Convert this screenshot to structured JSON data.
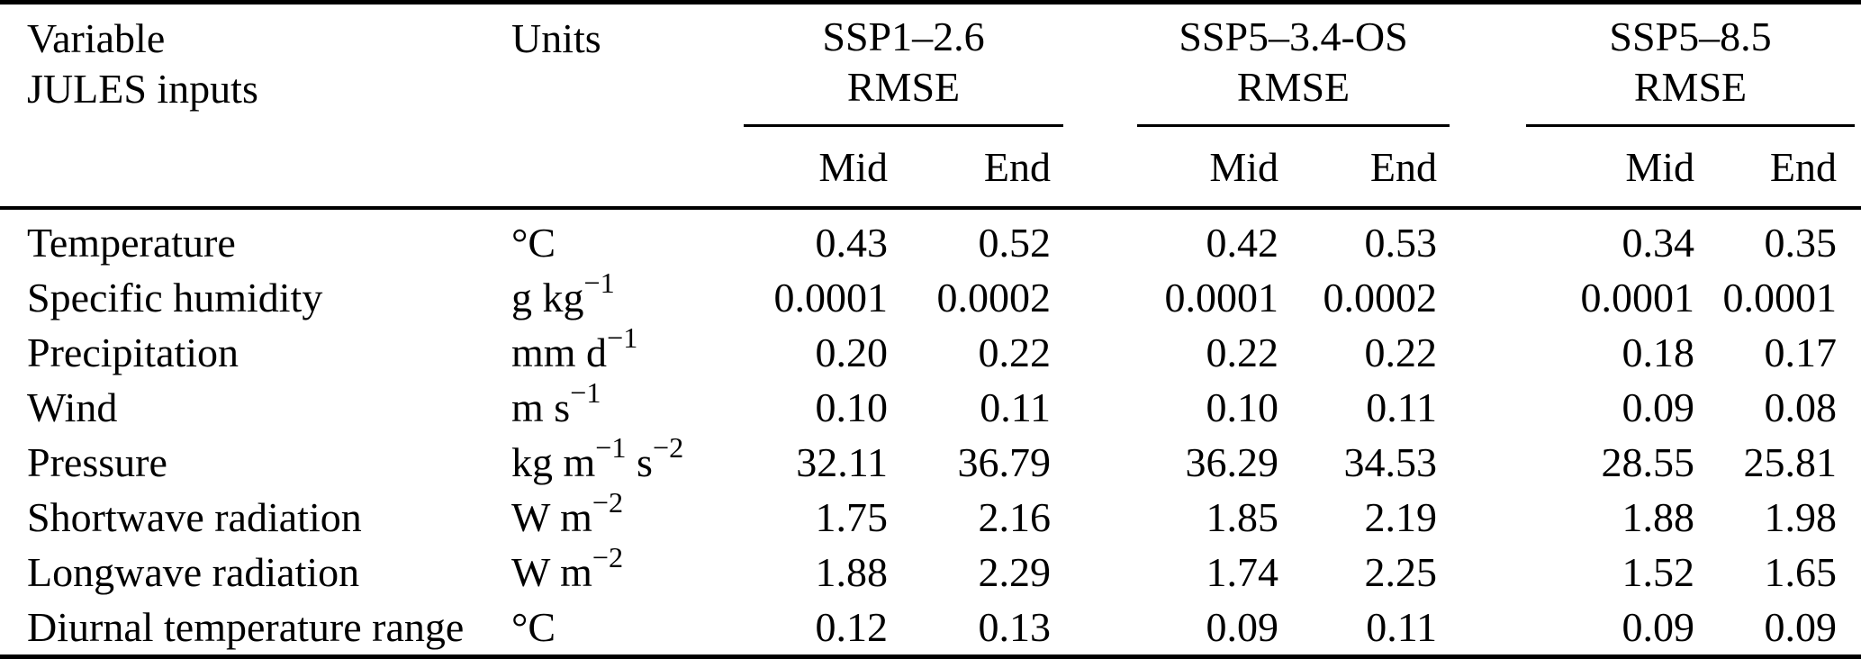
{
  "table": {
    "header": {
      "col1_line1": "Variable",
      "col1_line2": "JULES inputs",
      "col2": "Units",
      "groups": [
        {
          "scenario": "SSP1–2.6",
          "metric": "RMSE"
        },
        {
          "scenario": "SSP5–3.4-OS",
          "metric": "RMSE"
        },
        {
          "scenario": "SSP5–8.5",
          "metric": "RMSE"
        }
      ],
      "subheaders": [
        "Mid",
        "End",
        "Mid",
        "End",
        "Mid",
        "End"
      ]
    },
    "rows": [
      {
        "variable": "Temperature",
        "units": "°C",
        "values": [
          "0.43",
          "0.52",
          "0.42",
          "0.53",
          "0.34",
          "0.35"
        ]
      },
      {
        "variable": "Specific humidity",
        "units": "g kg^{−1}",
        "values": [
          "0.0001",
          "0.0002",
          "0.0001",
          "0.0002",
          "0.0001",
          "0.0001"
        ]
      },
      {
        "variable": "Precipitation",
        "units": "mm d^{−1}",
        "values": [
          "0.20",
          "0.22",
          "0.22",
          "0.22",
          "0.18",
          "0.17"
        ]
      },
      {
        "variable": "Wind",
        "units": "m s^{−1}",
        "values": [
          "0.10",
          "0.11",
          "0.10",
          "0.11",
          "0.09",
          "0.08"
        ]
      },
      {
        "variable": "Pressure",
        "units": "kg m^{−1} s^{−2}",
        "values": [
          "32.11",
          "36.79",
          "36.29",
          "34.53",
          "28.55",
          "25.81"
        ]
      },
      {
        "variable": "Shortwave radiation",
        "units": "W m^{−2}",
        "values": [
          "1.75",
          "2.16",
          "1.85",
          "2.19",
          "1.88",
          "1.98"
        ]
      },
      {
        "variable": "Longwave radiation",
        "units": "W m^{−2}",
        "values": [
          "1.88",
          "2.29",
          "1.74",
          "2.25",
          "1.52",
          "1.65"
        ]
      },
      {
        "variable": "Diurnal temperature range",
        "units": "°C",
        "values": [
          "0.12",
          "0.13",
          "0.09",
          "0.11",
          "0.09",
          "0.09"
        ]
      }
    ],
    "colors": {
      "text": "#000000",
      "background": "#ffffff",
      "rule": "#000000"
    }
  }
}
